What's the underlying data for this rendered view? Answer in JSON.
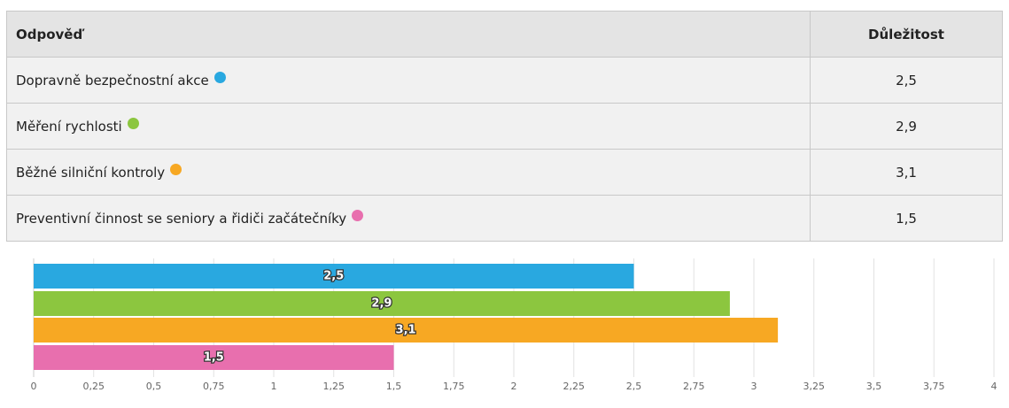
{
  "table": {
    "header": [
      "Odpověď",
      "Důležitost"
    ],
    "rows": [
      [
        "Dopravně bezpečnostní akce",
        "2,5"
      ],
      [
        "Měření rychlosti",
        "2,9"
      ],
      [
        "Běžné silniční kontroly",
        "3,1"
      ],
      [
        "Preventivní činnost se seniory a řidiči začátečníky",
        "1,5"
      ]
    ]
  },
  "chart_data": {
    "type": "bar",
    "orientation": "horizontal",
    "values": [
      2.5,
      2.9,
      3.1,
      1.5
    ],
    "value_labels": [
      "2,5",
      "2,9",
      "3,1",
      "1,5"
    ],
    "colors": [
      "#29a8e0",
      "#8cc63f",
      "#f7a823",
      "#e86fae"
    ],
    "xlim": [
      0,
      4
    ],
    "xticks": [
      0,
      {
        "value": 0.25,
        "label": "0,25"
      },
      {
        "value": 0.5,
        "label": "0,5"
      },
      {
        "value": 0.75,
        "label": "0,75"
      },
      1,
      {
        "value": 1.25,
        "label": "1,25"
      },
      {
        "value": 1.5,
        "label": "1,5"
      },
      {
        "value": 1.75,
        "label": "1,75"
      },
      2,
      {
        "value": 2.25,
        "label": "2,25"
      },
      {
        "value": 2.5,
        "label": "2,5"
      },
      {
        "value": 2.75,
        "label": "2,75"
      },
      3,
      {
        "value": 3.25,
        "label": "3,25"
      },
      {
        "value": 3.5,
        "label": "3,5"
      },
      {
        "value": 3.75,
        "label": "3,75"
      },
      4
    ],
    "grid": true
  }
}
